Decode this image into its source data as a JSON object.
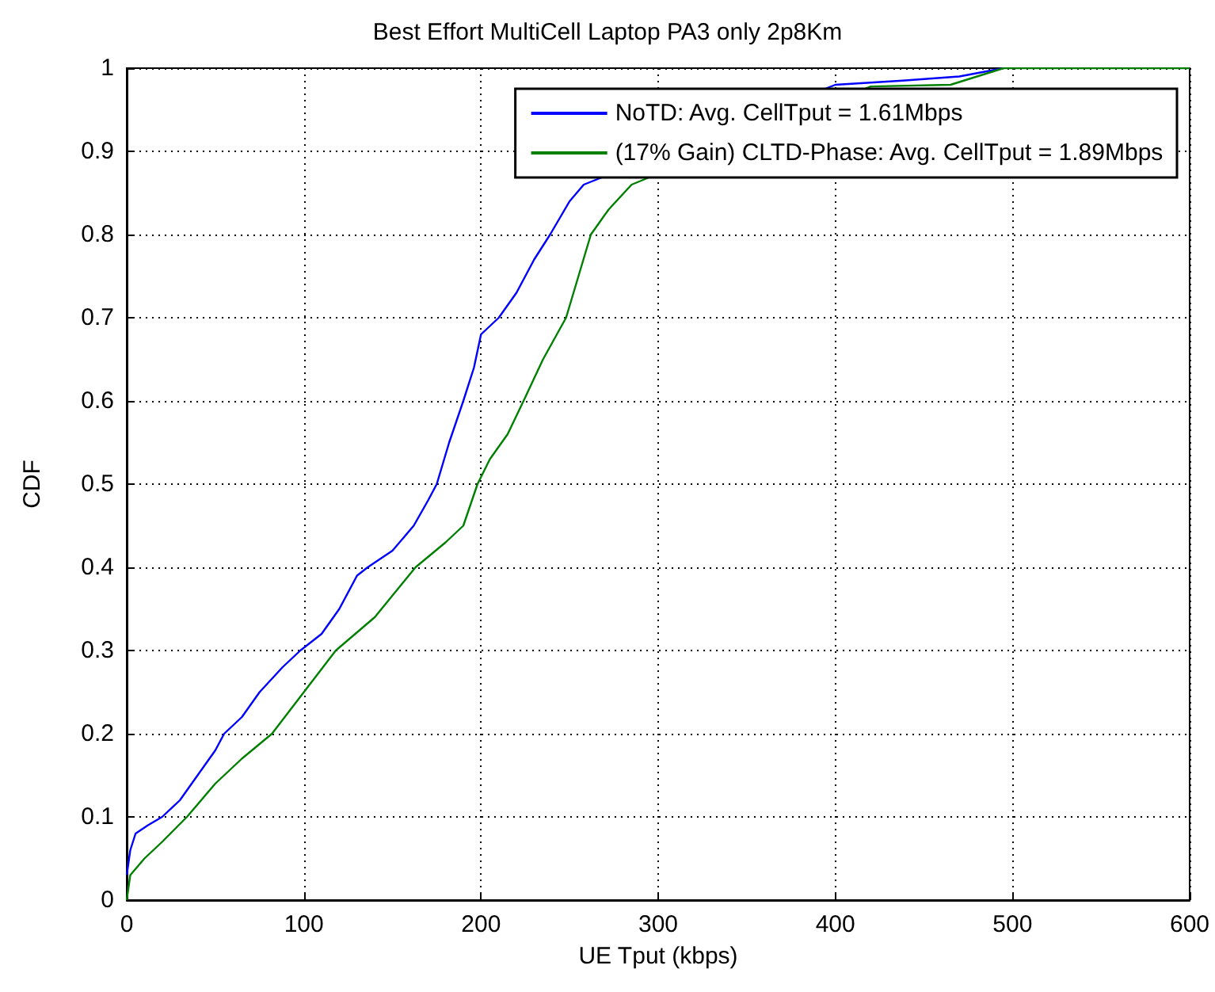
{
  "chart_data": {
    "type": "line",
    "title": "Best Effort MultiCell Laptop PA3 only 2p8Km",
    "xlabel": "UE Tput (kbps)",
    "ylabel": "CDF",
    "xlim": [
      0,
      600
    ],
    "xticks": [
      0,
      100,
      200,
      300,
      400,
      500,
      600
    ],
    "ylim": [
      0,
      1
    ],
    "yticks": [
      0,
      0.1,
      0.2,
      0.3,
      0.4,
      0.5,
      0.6,
      0.7,
      0.8,
      0.9,
      1
    ],
    "grid": true,
    "legend": "top right",
    "marker": "none",
    "line_style": "solid",
    "series": [
      {
        "name": "NoTD: Avg. CellTput = 1.61Mbps",
        "color": "#0000ff",
        "x": [
          0,
          2,
          5,
          12,
          20,
          30,
          40,
          50,
          55,
          65,
          75,
          88,
          98,
          110,
          120,
          130,
          136,
          150,
          162,
          170,
          175,
          182,
          190,
          196,
          200,
          210,
          220,
          230,
          239,
          250,
          258,
          400,
          438,
          470,
          495
        ],
        "values": [
          0.03,
          0.06,
          0.08,
          0.09,
          0.1,
          0.12,
          0.15,
          0.18,
          0.2,
          0.22,
          0.25,
          0.28,
          0.3,
          0.32,
          0.35,
          0.39,
          0.4,
          0.42,
          0.45,
          0.48,
          0.5,
          0.55,
          0.6,
          0.64,
          0.68,
          0.7,
          0.73,
          0.77,
          0.8,
          0.84,
          0.86,
          0.98,
          0.985,
          0.99,
          1
        ]
      },
      {
        "name": "(17% Gain) CLTD-Phase: Avg. CellTput = 1.89Mbps",
        "color": "#008000",
        "x": [
          0,
          2,
          10,
          20,
          34,
          50,
          65,
          82,
          100,
          118,
          140,
          163,
          180,
          190,
          198,
          205,
          215,
          224,
          235,
          248,
          255,
          262,
          272,
          285,
          420,
          465,
          495,
          600
        ],
        "values": [
          0,
          0.03,
          0.05,
          0.07,
          0.1,
          0.14,
          0.17,
          0.2,
          0.25,
          0.3,
          0.34,
          0.4,
          0.43,
          0.45,
          0.5,
          0.53,
          0.56,
          0.6,
          0.65,
          0.7,
          0.75,
          0.8,
          0.83,
          0.86,
          0.978,
          0.98,
          1,
          1
        ]
      }
    ]
  }
}
